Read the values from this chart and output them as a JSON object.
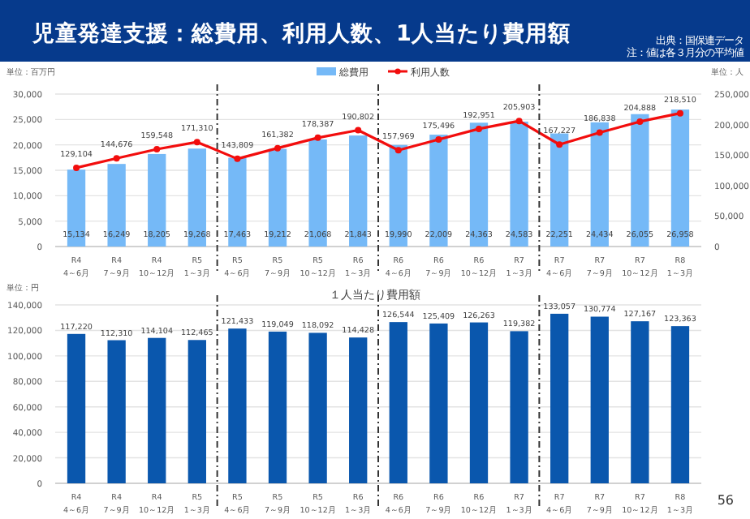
{
  "chart_data": [
    {
      "type": "bar",
      "title": "児童発達支援：総費用、利用人数、1人当たり費用額",
      "ylabel": "単位：百万円",
      "y2label": "単位：人",
      "annotations": [
        "出典：国保連データ",
        "注：値は各３月分の平均値"
      ],
      "categories": [
        "R4\n4～6月",
        "R4\n7～9月",
        "R4\n10～12月",
        "R5\n1～3月",
        "R5\n4～6月",
        "R5\n7～9月",
        "R5\n10～12月",
        "R6\n1～3月",
        "R6\n4～6月",
        "R6\n7～9月",
        "R6\n10～12月",
        "R7\n1～3月",
        "R7\n4～6月",
        "R7\n7～9月",
        "R7\n10～12月",
        "R8\n1～3月"
      ],
      "series": [
        {
          "name": "総費用",
          "type": "bar",
          "color": "#75b9f7",
          "values": [
            15134,
            16249,
            18205,
            19268,
            17463,
            19212,
            21068,
            21843,
            19990,
            22009,
            24363,
            24583,
            22251,
            24434,
            26055,
            26958
          ],
          "value_labels": [
            "15,134",
            "16,249",
            "18,205",
            "19,268",
            "17,463",
            "19,212",
            "21,068",
            "21,843",
            "19,990",
            "22,009",
            "24,363",
            "24,583",
            "22,251",
            "24,434",
            "26,055",
            "26,958"
          ]
        },
        {
          "name": "利用人数",
          "type": "line",
          "axis": "y2",
          "color": "#f20d0d",
          "values": [
            129104,
            144676,
            159548,
            171310,
            143809,
            161382,
            178387,
            190802,
            157969,
            175496,
            192951,
            205903,
            167227,
            186838,
            204888,
            218510
          ],
          "value_labels": [
            "129,104",
            "144,676",
            "159,548",
            "171,310",
            "143,809",
            "161,382",
            "178,387",
            "190,802",
            "157,969",
            "175,496",
            "192,951",
            "205,903",
            "167,227",
            "186,838",
            "204,888",
            "218,510"
          ]
        }
      ],
      "ylim": [
        0,
        30000
      ],
      "yticks": [
        0,
        {
          "value": 5000,
          "label": "5,000"
        },
        {
          "value": 10000,
          "label": "10,000"
        },
        {
          "value": 15000,
          "label": "15,000"
        },
        {
          "value": 20000,
          "label": "20,000"
        },
        {
          "value": 25000,
          "label": "25,000"
        },
        {
          "value": 30000,
          "label": "30,000"
        }
      ],
      "y2lim": [
        0,
        250000
      ],
      "y2ticks": [
        0,
        {
          "value": 50000,
          "label": "50,000"
        },
        {
          "value": 100000,
          "label": "100,000"
        },
        {
          "value": 150000,
          "label": "150,000"
        },
        {
          "value": 200000,
          "label": "200,000"
        },
        {
          "value": 250000,
          "label": "250,000"
        }
      ],
      "grid": "y",
      "legend": "top",
      "marker": "circle"
    },
    {
      "type": "bar",
      "title": "１人当たり費用額",
      "ylabel": "単位：円",
      "annotations": [
        "56"
      ],
      "categories": [
        "R4\n4～6月",
        "R4\n7～9月",
        "R4\n10～12月",
        "R5\n1～3月",
        "R5\n4～6月",
        "R5\n7～9月",
        "R5\n10～12月",
        "R6\n1～3月",
        "R6\n4～6月",
        "R6\n7～9月",
        "R6\n10～12月",
        "R7\n1～3月",
        "R7\n4～6月",
        "R7\n7～9月",
        "R7\n10～12月",
        "R8\n1～3月"
      ],
      "series": [
        {
          "color": "#0a57ad",
          "values": [
            117220,
            112310,
            114104,
            112465,
            121433,
            119049,
            118092,
            114428,
            126544,
            125409,
            126263,
            119382,
            133057,
            130774,
            127167,
            123363
          ],
          "value_labels": [
            "117,220",
            "112,310",
            "114,104",
            "112,465",
            "121,433",
            "119,049",
            "118,092",
            "114,428",
            "126,544",
            "125,409",
            "126,263",
            "119,382",
            "133,057",
            "130,774",
            "127,167",
            "123,363"
          ]
        }
      ],
      "ylim": [
        0,
        140000
      ],
      "yticks": [
        0,
        {
          "value": 20000,
          "label": "20,000"
        },
        {
          "value": 40000,
          "label": "40,000"
        },
        {
          "value": 60000,
          "label": "60,000"
        },
        {
          "value": 80000,
          "label": "80,000"
        },
        {
          "value": 100000,
          "label": "100,000"
        },
        {
          "value": 120000,
          "label": "120,000"
        },
        {
          "value": 140000,
          "label": "140,000"
        }
      ],
      "grid": "y"
    }
  ]
}
